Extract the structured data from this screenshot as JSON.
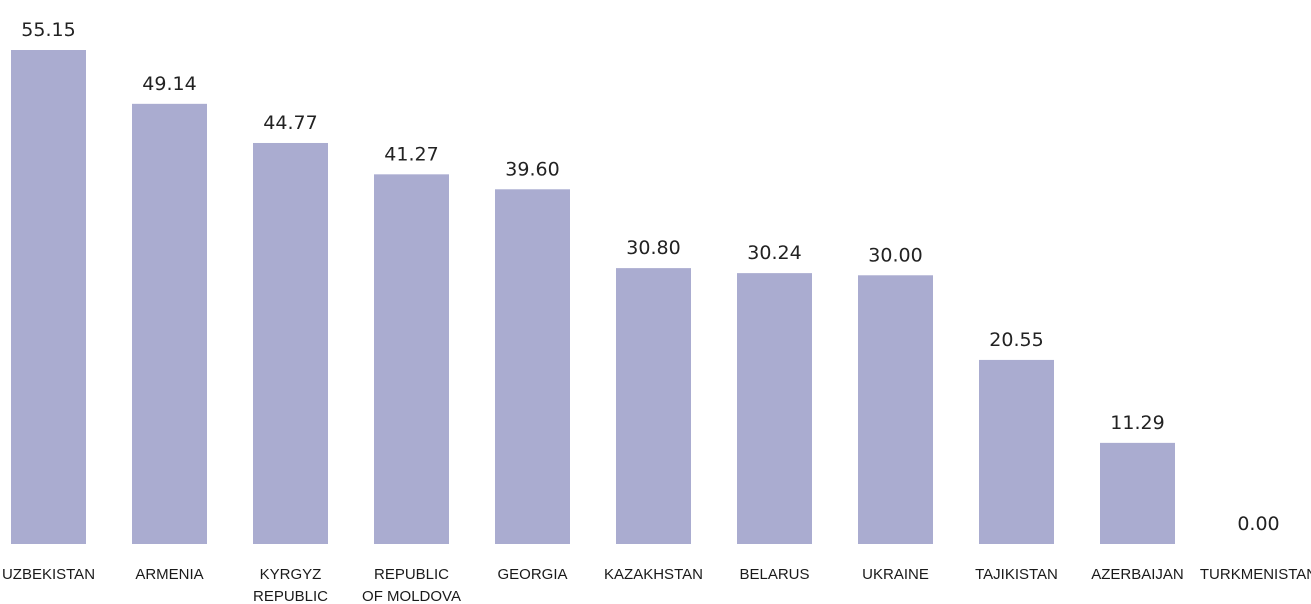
{
  "chart_data": {
    "type": "bar",
    "categories": [
      [
        "UZBEKISTAN"
      ],
      [
        "ARMENIA"
      ],
      [
        "KYRGYZ",
        "REPUBLIC"
      ],
      [
        "REPUBLIC",
        "OF MOLDOVA"
      ],
      [
        "GEORGIA"
      ],
      [
        "KAZAKHSTAN"
      ],
      [
        "BELARUS"
      ],
      [
        "UKRAINE"
      ],
      [
        "TAJIKISTAN"
      ],
      [
        "AZERBAIJAN"
      ],
      [
        "TURKMENISTAN"
      ]
    ],
    "values": [
      55.15,
      49.14,
      44.77,
      41.27,
      39.6,
      30.8,
      30.24,
      30.0,
      20.55,
      11.29,
      0.0
    ],
    "value_labels": [
      "55.15",
      "49.14",
      "44.77",
      "41.27",
      "39.60",
      "30.80",
      "30.24",
      "30.00",
      "20.55",
      "11.29",
      "0.00"
    ],
    "ylim": [
      0,
      55.15
    ],
    "grid": false,
    "legend": "none",
    "bar_color": "#aaacd0"
  }
}
